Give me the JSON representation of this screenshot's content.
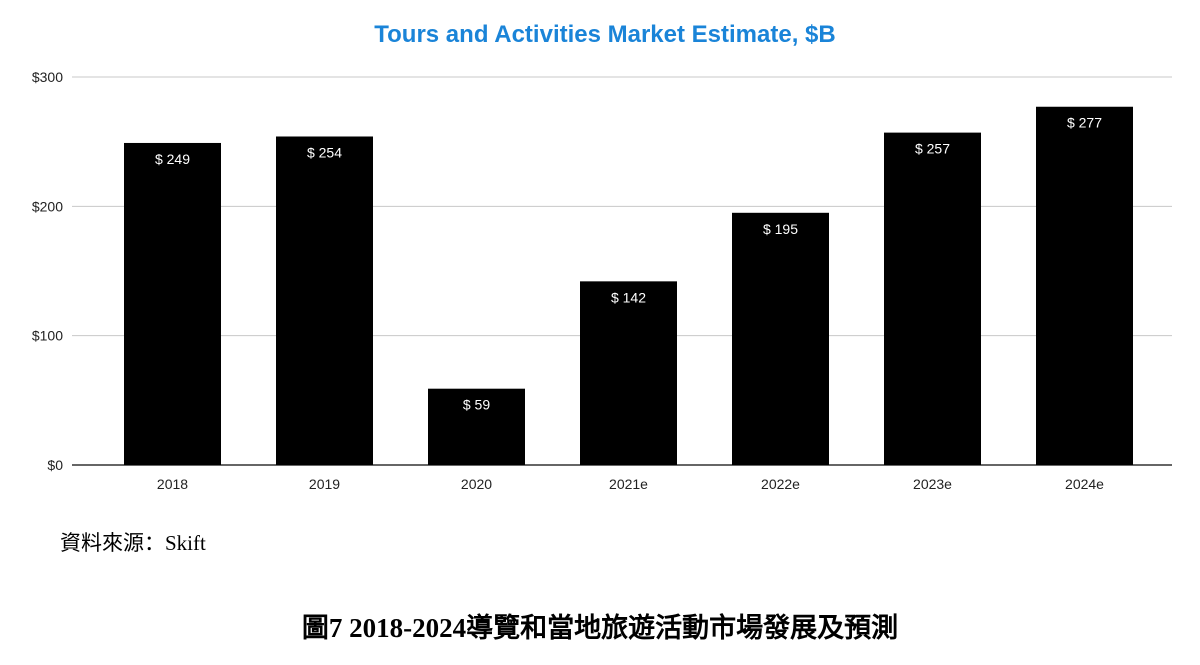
{
  "chart_data": {
    "type": "bar",
    "title": "Tours and Activities Market Estimate, $B",
    "categories": [
      "2018",
      "2019",
      "2020",
      "2021e",
      "2022e",
      "2023e",
      "2024e"
    ],
    "values": [
      249,
      254,
      59,
      142,
      195,
      257,
      277
    ],
    "value_labels": [
      "$ 249",
      "$ 254",
      "$ 59",
      "$ 142",
      "$ 195",
      "$ 257",
      "$ 277"
    ],
    "y_ticks": [
      0,
      100,
      200,
      300
    ],
    "y_tick_labels": [
      "$0",
      "$100",
      "$200",
      "$300"
    ],
    "ylim": [
      0,
      300
    ],
    "grid": true,
    "bar_color": "#000000",
    "title_color": "#1a84d8",
    "xlabel": "",
    "ylabel": ""
  },
  "source": "資料來源：Skift",
  "caption": "圖7 2018-2024導覽和當地旅遊活動市場發展及預測"
}
